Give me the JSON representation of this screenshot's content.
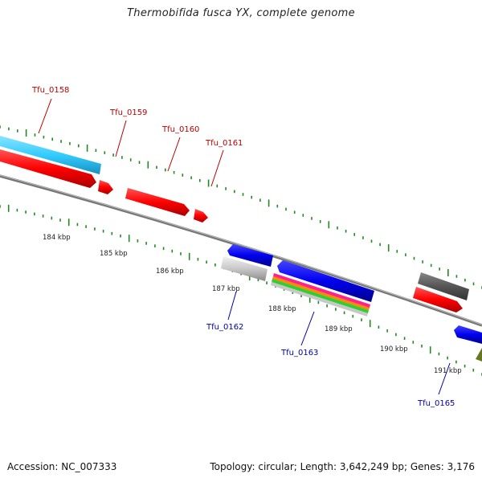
{
  "title": "Thermobifida fusca YX, complete genome",
  "footer": {
    "accession": "Accession: NC_007333",
    "summary": "Topology: circular; Length: 3,642,249 bp; Genes: 3,176"
  },
  "colors": {
    "backbone": "#777777",
    "tick": "#228822",
    "forward_label": "#bb0000",
    "reverse_label": "#0000aa",
    "forward_cds": "#ff0000",
    "reverse_cds": "#0000ee",
    "forward_gene": "#33ccff",
    "reverse_gene": "#c8c8c8",
    "other_dark": "#555555",
    "other_olive": "#667722"
  },
  "ticks": [
    {
      "label": "184 kbp"
    },
    {
      "label": "185 kbp"
    },
    {
      "label": "186 kbp"
    },
    {
      "label": "187 kbp"
    },
    {
      "label": "188 kbp"
    },
    {
      "label": "189 kbp"
    },
    {
      "label": "190 kbp"
    },
    {
      "label": "191 kbp"
    }
  ],
  "genes": [
    {
      "label": "Tfu_0158",
      "strand": "forward"
    },
    {
      "label": "Tfu_0159",
      "strand": "forward"
    },
    {
      "label": "Tfu_0160",
      "strand": "forward"
    },
    {
      "label": "Tfu_0161",
      "strand": "forward"
    },
    {
      "label": "Tfu_0162",
      "strand": "reverse"
    },
    {
      "label": "Tfu_0163",
      "strand": "reverse"
    },
    {
      "label": "Tfu_0165",
      "strand": "reverse"
    }
  ]
}
